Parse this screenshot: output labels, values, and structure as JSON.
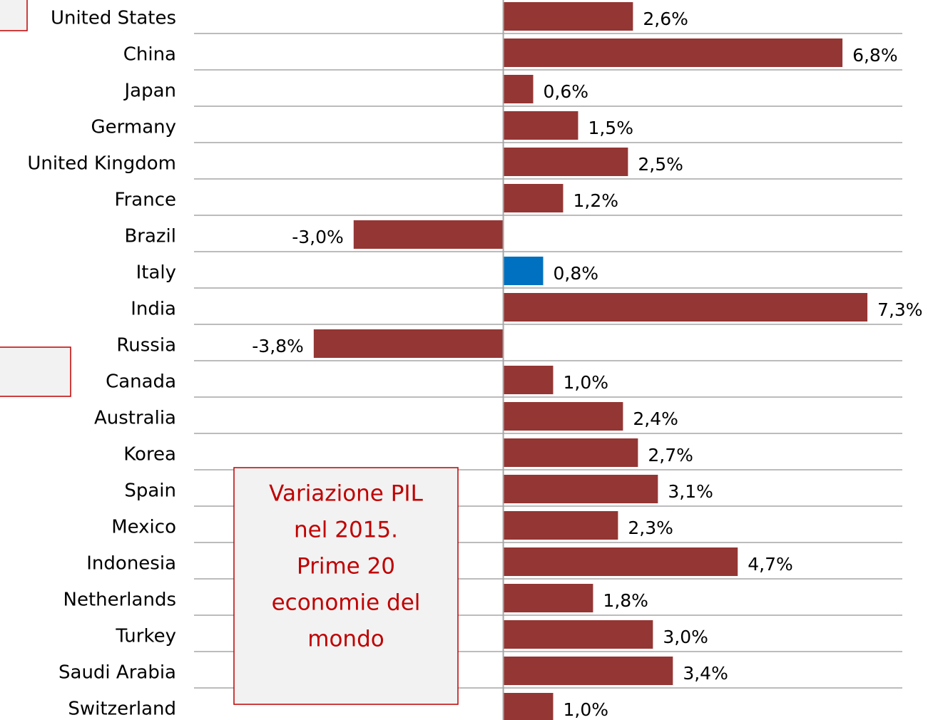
{
  "chart_data": {
    "type": "barh",
    "categories": [
      "United States",
      "China",
      "Japan",
      "Germany",
      "United Kingdom",
      "France",
      "Brazil",
      "Italy",
      "India",
      "Russia",
      "Canada",
      "Australia",
      "Korea",
      "Spain",
      "Mexico",
      "Indonesia",
      "Netherlands",
      "Turkey",
      "Saudi Arabia",
      "Switzerland"
    ],
    "values": [
      2.6,
      6.8,
      0.6,
      1.5,
      2.5,
      1.2,
      -3.0,
      0.8,
      7.3,
      -3.8,
      1.0,
      2.4,
      2.7,
      3.1,
      2.3,
      4.7,
      1.8,
      3.0,
      3.4,
      1.0
    ],
    "value_labels": [
      "2,6%",
      "6,8%",
      "0,6%",
      "1,5%",
      "2,5%",
      "1,2%",
      "-3,0%",
      "0,8%",
      "7,3%",
      "-3,8%",
      "1,0%",
      "2,4%",
      "2,7%",
      "3,1%",
      "2,3%",
      "4,7%",
      "1,8%",
      "3,0%",
      "3,4%",
      "1,0%"
    ],
    "colors": [
      "#943634",
      "#943634",
      "#943634",
      "#943634",
      "#943634",
      "#943634",
      "#943634",
      "#0070c0",
      "#943634",
      "#943634",
      "#943634",
      "#943634",
      "#943634",
      "#943634",
      "#943634",
      "#943634",
      "#943634",
      "#943634",
      "#943634",
      "#943634"
    ],
    "xlim": [
      -6.2,
      8.0
    ],
    "grid": true,
    "annotation": [
      "Variazione PIL",
      "nel 2015.",
      "Prime 20",
      "economie del",
      "mondo"
    ]
  }
}
